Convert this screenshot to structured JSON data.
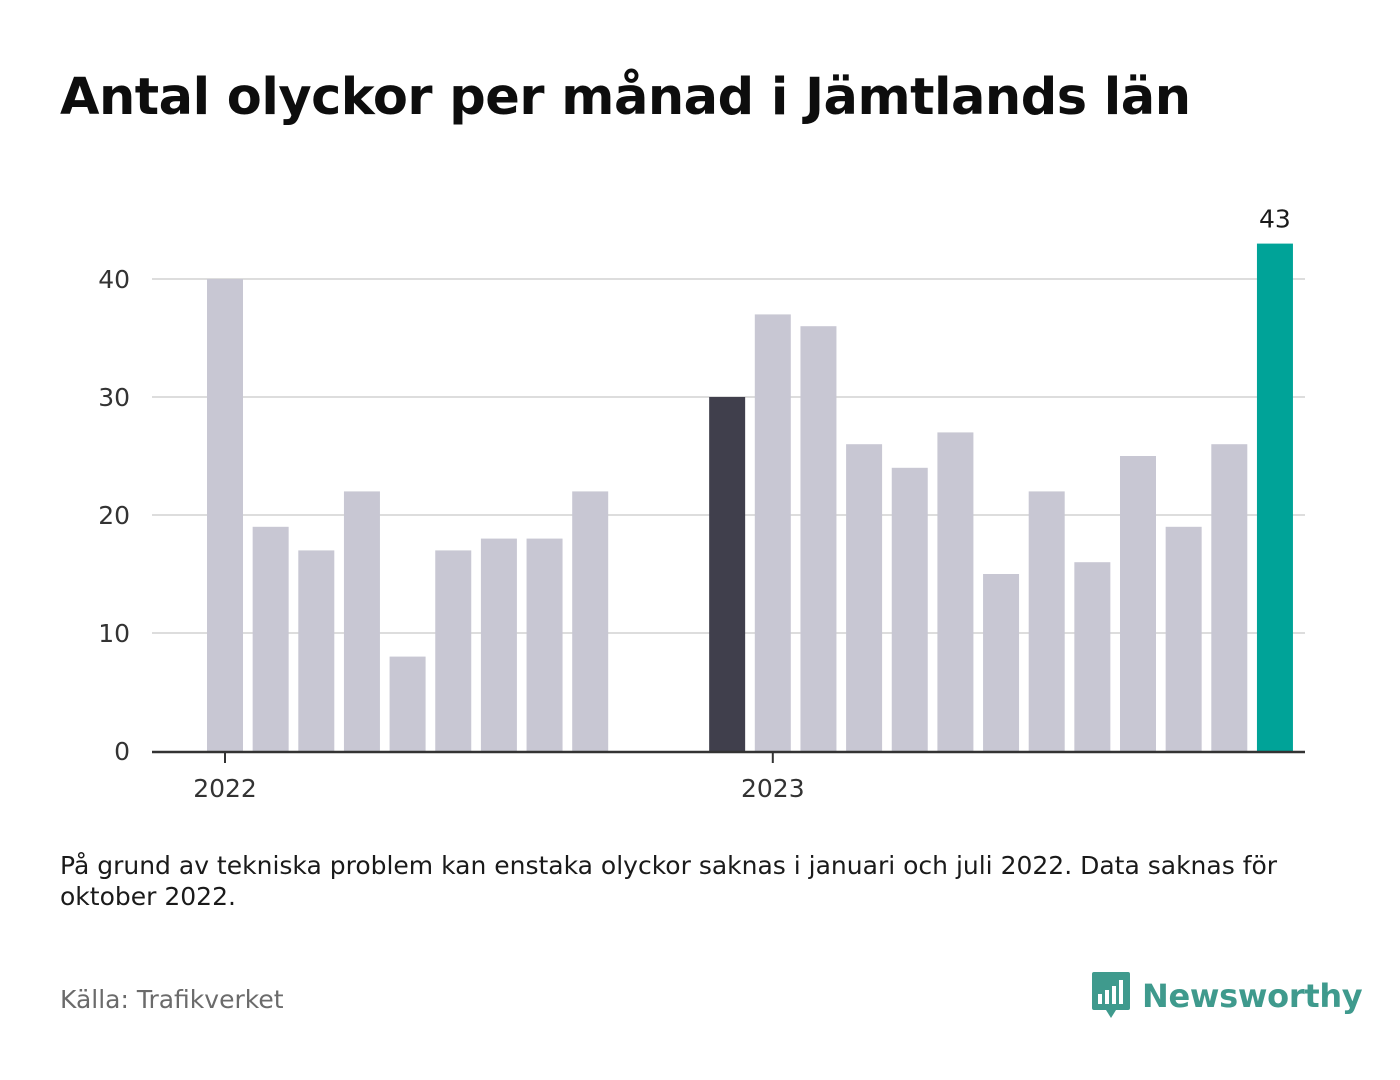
{
  "title": "Antal olyckor per månad i Jämtlands län",
  "note": "På grund av tekniska problem kan enstaka olyckor saknas i januari och juli 2022. Data saknas för oktober 2022.",
  "source": "Källa: Trafikverket",
  "brand": "Newsworthy",
  "colors": {
    "default": "#c8c7d3",
    "reference": "#403f4c",
    "highlight": "#00a398",
    "grid": "#dddddd",
    "axis": "#333333"
  },
  "chart_data": {
    "type": "bar",
    "title": "Antal olyckor per månad i Jämtlands län",
    "xlabel": "",
    "ylabel": "",
    "x_tick_labels": [
      {
        "label": "2022",
        "at": "2022-01"
      },
      {
        "label": "2023",
        "at": "2023-01"
      }
    ],
    "categories": [
      "2022-01",
      "2022-02",
      "2022-03",
      "2022-04",
      "2022-05",
      "2022-06",
      "2022-07",
      "2022-08",
      "2022-09",
      "2022-10",
      "2022-11",
      "2022-12",
      "2023-01",
      "2023-02",
      "2023-03",
      "2023-04",
      "2023-05",
      "2023-06",
      "2023-07",
      "2023-08",
      "2023-09",
      "2023-10",
      "2023-11",
      "2023-12"
    ],
    "values": [
      40,
      19,
      17,
      22,
      8,
      17,
      18,
      18,
      22,
      null,
      null,
      30,
      37,
      36,
      26,
      24,
      27,
      15,
      22,
      16,
      25,
      19,
      26,
      43
    ],
    "bar_roles": [
      "default",
      "default",
      "default",
      "default",
      "default",
      "default",
      "default",
      "default",
      "default",
      "default",
      "default",
      "reference",
      "default",
      "default",
      "default",
      "default",
      "default",
      "default",
      "default",
      "default",
      "default",
      "default",
      "default",
      "highlight"
    ],
    "data_labels": [
      {
        "index": 23,
        "text": "43"
      }
    ],
    "y_ticks": [
      0,
      10,
      20,
      30,
      40
    ],
    "ylim": [
      0,
      45
    ],
    "grid": true,
    "legend": "none"
  }
}
